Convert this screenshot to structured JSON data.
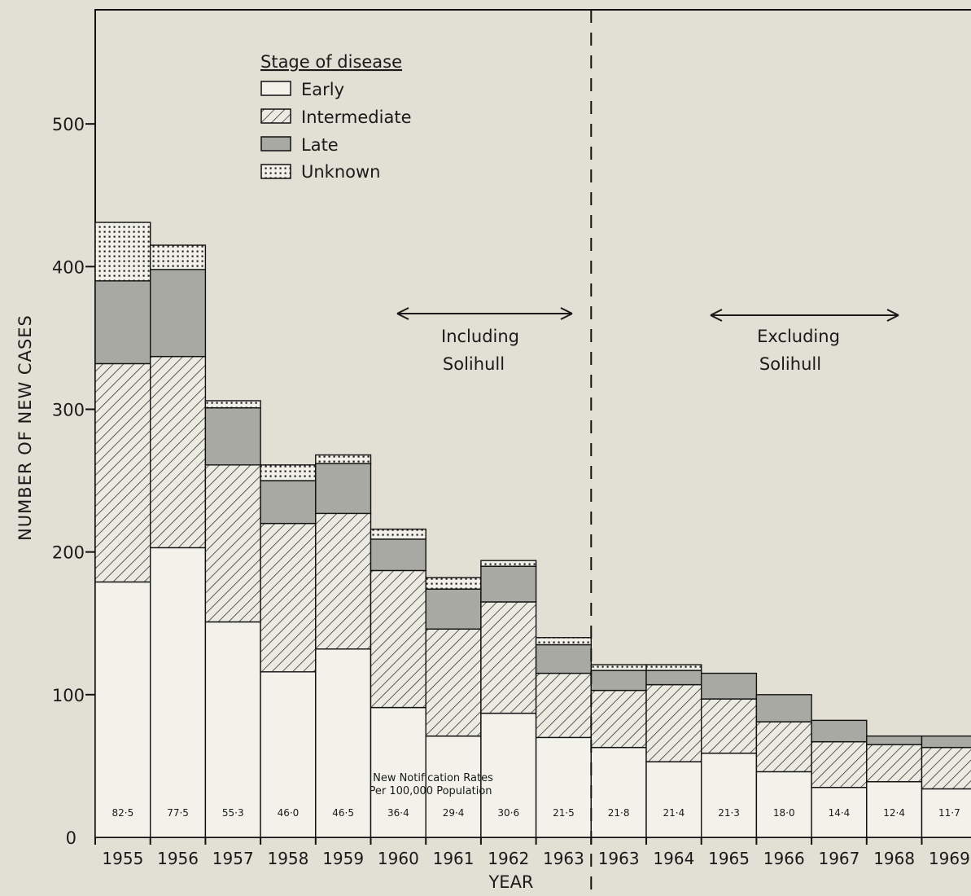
{
  "chart_data": {
    "type": "bar",
    "stacked": true,
    "ylabel": "NUMBER OF NEW CASES",
    "xlabel": "YEAR",
    "ylim": [
      0,
      580
    ],
    "yticks": [
      0,
      100,
      200,
      300,
      400,
      500
    ],
    "ytick_labels": [
      "0",
      "100",
      "200",
      "300",
      "400",
      "500"
    ],
    "categories": [
      "1955",
      "1956",
      "1957",
      "1958",
      "1959",
      "1960",
      "1961",
      "1962",
      "1963",
      "1963",
      "1964",
      "1965",
      "1966",
      "1967",
      "1968",
      "1969"
    ],
    "series": [
      {
        "name": "Early",
        "pattern": "blank",
        "values": [
          179,
          203,
          151,
          116,
          132,
          91,
          71,
          87,
          70,
          63,
          53,
          59,
          46,
          35,
          39,
          34
        ]
      },
      {
        "name": "Intermediate",
        "pattern": "hatched",
        "values": [
          153,
          134,
          110,
          104,
          95,
          96,
          75,
          78,
          45,
          40,
          54,
          38,
          35,
          32,
          26,
          29
        ]
      },
      {
        "name": "Late",
        "pattern": "shaded",
        "values": [
          58,
          61,
          40,
          30,
          35,
          22,
          28,
          25,
          20,
          14,
          10,
          18,
          19,
          15,
          6,
          8
        ]
      },
      {
        "name": "Unknown",
        "pattern": "dotted",
        "values": [
          41,
          17,
          5,
          11,
          6,
          7,
          8,
          4,
          5,
          4,
          4,
          0,
          0,
          0,
          0,
          0
        ]
      }
    ],
    "rates": [
      "82·5",
      "77·5",
      "55·3",
      "46·0",
      "46·5",
      "36·4",
      "29·4",
      "30·6",
      "21·5",
      "21·8",
      "21·4",
      "21·3",
      "18·0",
      "14·4",
      "12·4",
      "11·7"
    ],
    "rates_title_line1": "New Notification Rates",
    "rates_title_line2": "Per 100,000 Population",
    "legend_title": "Stage of disease",
    "legend_position": "top-left",
    "divider_after_index": 8,
    "annotations": [
      {
        "line1": "Including",
        "line2": "Solihull"
      },
      {
        "line1": "Excluding",
        "line2": "Solihull"
      }
    ],
    "grid": false
  }
}
